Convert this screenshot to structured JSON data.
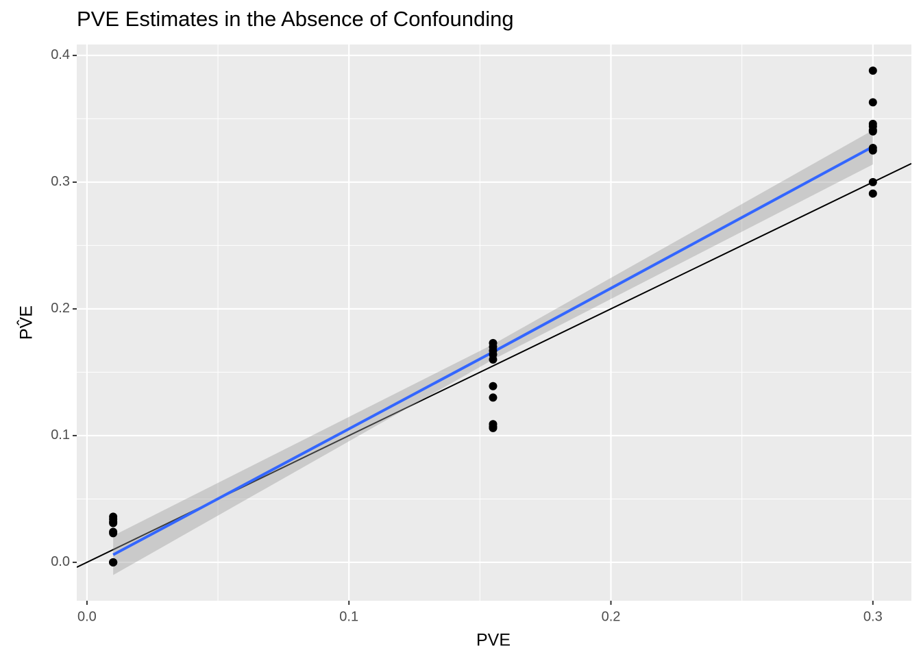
{
  "chart_data": {
    "type": "scatter",
    "title": "PVE Estimates in the Absence of Confounding",
    "x_label": "PVE",
    "y_label": "PV̂E",
    "xlim": [
      -0.0039,
      0.3147
    ],
    "ylim": [
      -0.0303,
      0.4086
    ],
    "xticks": [
      {
        "value": 0,
        "label": "0.0"
      },
      0.1,
      0.2,
      0.3
    ],
    "yticks": [
      {
        "value": 0,
        "label": "0.0"
      },
      0.1,
      0.2,
      0.3,
      0.4
    ],
    "minor_xticks": [
      0.05,
      0.15,
      0.25
    ],
    "minor_yticks": [
      0.05,
      0.15,
      0.25,
      0.35
    ],
    "grid": true,
    "series": [
      {
        "color": "#000000",
        "x": [
          0.01,
          0.01,
          0.01,
          0.01,
          0.01,
          0.01,
          0.01,
          0.01,
          0.01,
          0.01,
          0.155,
          0.155,
          0.155,
          0.155,
          0.155,
          0.155,
          0.155,
          0.155,
          0.155,
          0.155,
          0.3,
          0.3,
          0.3,
          0.3,
          0.3,
          0.3,
          0.3,
          0.3,
          0.3,
          0.3
        ],
        "values": [
          0.036,
          0.034,
          0.032,
          0.031,
          0.024,
          0.023,
          0.0,
          0.0,
          0.0,
          0.0,
          0.173,
          0.17,
          0.167,
          0.164,
          0.16,
          0.139,
          0.13,
          0.109,
          0.107,
          0.106,
          0.388,
          0.363,
          0.346,
          0.344,
          0.341,
          0.34,
          0.327,
          0.325,
          0.3,
          0.291
        ]
      }
    ],
    "fit": {
      "color": "#3366ff",
      "band_color": "#999999",
      "x": [
        0.01,
        0.155,
        0.3
      ],
      "values": [
        0.006,
        0.166,
        0.328
      ],
      "lower": [
        -0.01,
        0.16,
        0.314
      ],
      "upper": [
        0.021,
        0.172,
        0.341
      ]
    },
    "reference_line": {
      "intercept": 0,
      "slope": 1,
      "color": "#000000"
    }
  }
}
